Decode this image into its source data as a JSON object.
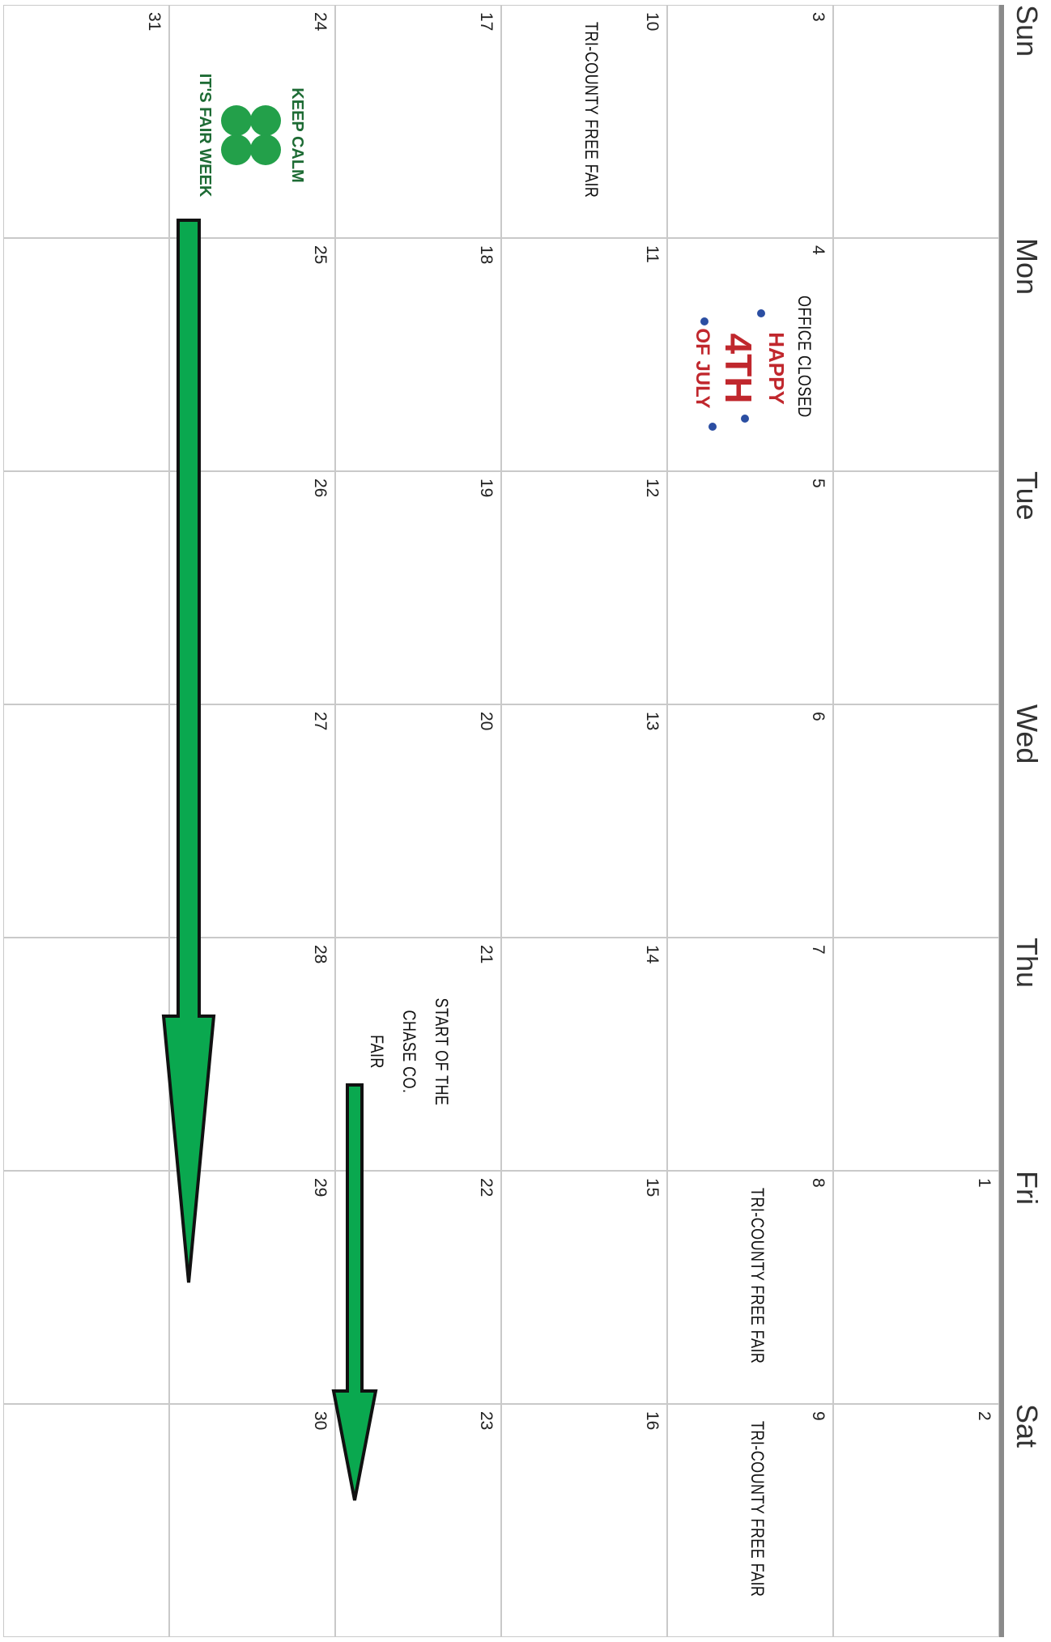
{
  "header": {
    "days": [
      "Sun",
      "Mon",
      "Tue",
      "Wed",
      "Thu",
      "Fri",
      "Sat"
    ]
  },
  "weeks": [
    {
      "days": [
        null,
        null,
        null,
        null,
        null,
        {
          "date": 1
        },
        {
          "date": 2
        }
      ]
    },
    {
      "days": [
        {
          "date": 3
        },
        {
          "date": 4,
          "events": [
            "OFFICE CLOSED"
          ],
          "image": {
            "kind": "july",
            "lines": [
              "HAPPY",
              "4TH",
              "OF JULY"
            ]
          }
        },
        {
          "date": 5
        },
        {
          "date": 6
        },
        {
          "date": 7
        },
        {
          "date": 8,
          "events": [
            "TRI-COUNTY FREE FAIR"
          ]
        },
        {
          "date": 9,
          "events": [
            "TRI-COUNTY FREE FAIR"
          ]
        }
      ]
    },
    {
      "days": [
        {
          "date": 10,
          "events": [
            "TRI-COUNTY FREE FAIR"
          ]
        },
        {
          "date": 11
        },
        {
          "date": 12
        },
        {
          "date": 13
        },
        {
          "date": 14
        },
        {
          "date": 15
        },
        {
          "date": 16
        }
      ]
    },
    {
      "days": [
        {
          "date": 17
        },
        {
          "date": 18
        },
        {
          "date": 19
        },
        {
          "date": 20
        },
        {
          "date": 21,
          "events": [
            "START OF THE",
            "CHASE CO.",
            "FAIR"
          ]
        },
        {
          "date": 22
        },
        {
          "date": 23
        }
      ]
    },
    {
      "days": [
        {
          "date": 24,
          "image": {
            "kind": "clover",
            "lines": [
              "KEEP CALM",
              "IT'S FAIR WEEK"
            ]
          }
        },
        {
          "date": 25
        },
        {
          "date": 26
        },
        {
          "date": 27
        },
        {
          "date": 28
        },
        {
          "date": 29
        },
        {
          "date": 30
        }
      ]
    },
    {
      "days": [
        {
          "date": 31
        },
        null,
        null,
        null,
        null,
        null,
        null
      ]
    }
  ]
}
